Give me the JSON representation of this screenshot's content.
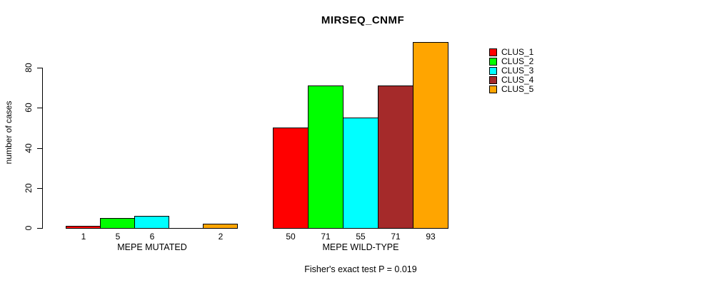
{
  "title": "MIRSEQ_CNMF",
  "y_axis": {
    "label": "number of cases",
    "tick_labels": [
      "0",
      "20",
      "40",
      "60",
      "80"
    ]
  },
  "caption": "Fisher's exact test P = 0.019",
  "chart_data": {
    "type": "bar",
    "title": "MIRSEQ_CNMF",
    "xlabel": "",
    "ylabel": "number of cases",
    "ylim": [
      0,
      93
    ],
    "yticks": [
      0,
      20,
      40,
      60,
      80
    ],
    "grid": false,
    "legend_position": "right",
    "categories": [
      "MEPE MUTATED",
      "MEPE WILD-TYPE"
    ],
    "series": [
      {
        "name": "CLUS_1",
        "color": "#FF0000",
        "values": [
          1,
          50
        ]
      },
      {
        "name": "CLUS_2",
        "color": "#00FF00",
        "values": [
          5,
          71
        ]
      },
      {
        "name": "CLUS_3",
        "color": "#00FFFF",
        "values": [
          6,
          55
        ]
      },
      {
        "name": "CLUS_4",
        "color": "#A52A2A",
        "values": [
          0,
          71
        ]
      },
      {
        "name": "CLUS_5",
        "color": "#FFA500",
        "values": [
          2,
          93
        ]
      }
    ],
    "bar_value_labels": [
      [
        "1",
        "5",
        "6",
        "",
        "2"
      ],
      [
        "50",
        "71",
        "55",
        "71",
        "93"
      ]
    ],
    "annotations": [
      "Fisher's exact test P = 0.019"
    ]
  }
}
